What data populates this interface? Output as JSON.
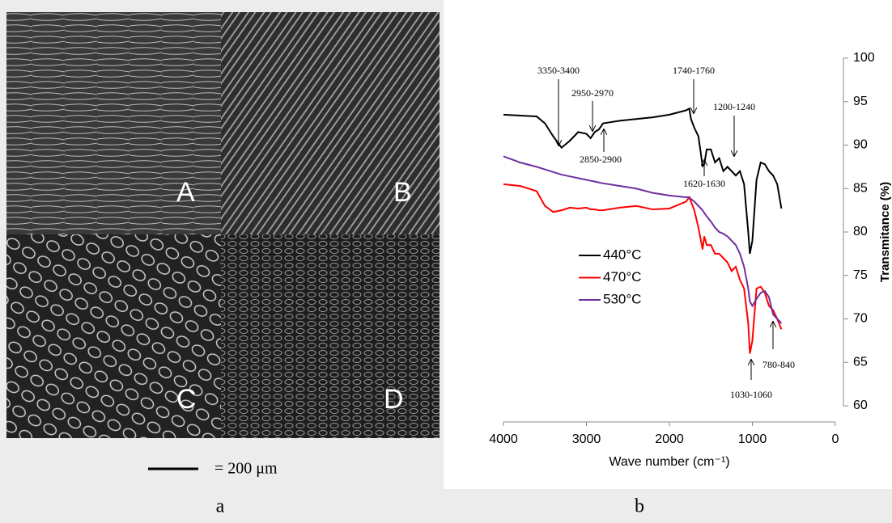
{
  "sem_panel": {
    "labels": [
      "A",
      "B",
      "C",
      "D"
    ],
    "scale_bar": "= 200 μm"
  },
  "panel_captions": [
    "a",
    "b"
  ],
  "chart_data": {
    "type": "line",
    "x_label": "Wave number (cm⁻¹)",
    "y_label": "Transmitance (%)",
    "xlim": [
      4000,
      0
    ],
    "xticks": [
      4000,
      3000,
      2000,
      1000,
      0
    ],
    "ylim": [
      60,
      100
    ],
    "yticks": [
      60,
      65,
      70,
      75,
      80,
      85,
      90,
      95,
      100
    ],
    "y_axis_side": "right",
    "x": [
      4000,
      3800,
      3600,
      3500,
      3400,
      3300,
      3200,
      3100,
      3000,
      2950,
      2900,
      2850,
      2800,
      2600,
      2400,
      2200,
      2000,
      1800,
      1760,
      1740,
      1700,
      1650,
      1600,
      1580,
      1550,
      1500,
      1450,
      1400,
      1350,
      1300,
      1250,
      1200,
      1150,
      1100,
      1050,
      1030,
      1000,
      950,
      900,
      850,
      800,
      750,
      700,
      650
    ],
    "series": [
      {
        "name": "440°C",
        "color": "#000000",
        "values": [
          93.5,
          93.4,
          93.3,
          92.5,
          91.0,
          89.7,
          90.5,
          91.5,
          91.3,
          90.8,
          91.5,
          91.8,
          92.5,
          92.8,
          93.0,
          93.2,
          93.5,
          94.0,
          94.2,
          93.0,
          92.0,
          91.0,
          87.6,
          87.8,
          89.5,
          89.5,
          88.0,
          88.5,
          87.0,
          87.5,
          87.0,
          86.5,
          87.0,
          85.5,
          80.0,
          77.5,
          79.0,
          86.0,
          88.0,
          87.8,
          87.0,
          86.5,
          85.5,
          82.7
        ]
      },
      {
        "name": "470°C",
        "color": "#ff0000",
        "values": [
          85.5,
          85.3,
          84.7,
          83.0,
          82.3,
          82.5,
          82.8,
          82.7,
          82.8,
          82.6,
          82.6,
          82.5,
          82.5,
          82.8,
          83.0,
          82.6,
          82.7,
          83.5,
          84.0,
          83.5,
          82.5,
          80.5,
          78.0,
          79.5,
          78.5,
          78.5,
          77.5,
          77.5,
          77.0,
          76.5,
          75.5,
          76.0,
          74.5,
          73.5,
          69.5,
          66.0,
          67.5,
          73.5,
          73.7,
          73.0,
          71.5,
          71.0,
          70.0,
          68.8
        ]
      },
      {
        "name": "530°C",
        "color": "#7030a0",
        "values": [
          88.7,
          88.0,
          87.5,
          87.2,
          86.9,
          86.6,
          86.4,
          86.2,
          86.0,
          85.9,
          85.8,
          85.7,
          85.6,
          85.3,
          85.0,
          84.5,
          84.2,
          84.0,
          84.0,
          83.8,
          83.5,
          83.0,
          82.5,
          82.2,
          81.8,
          81.2,
          80.5,
          80.0,
          79.8,
          79.5,
          79.0,
          78.5,
          77.5,
          76.0,
          73.5,
          72.0,
          71.5,
          72.3,
          73.0,
          73.2,
          72.5,
          70.5,
          70.0,
          69.5
        ]
      }
    ],
    "annotations": [
      "3350-3400",
      "2950-2970",
      "1740-1760",
      "1200-1240",
      "2850-2900",
      "1620-1630",
      "780-840",
      "1030-1060"
    ]
  }
}
